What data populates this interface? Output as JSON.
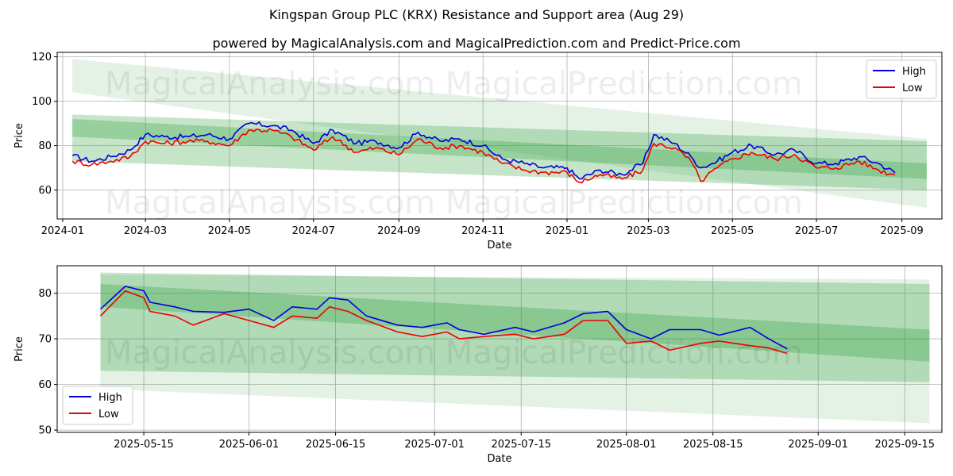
{
  "title": "Kingspan Group PLC (KRX) Resistance and Support area (Aug 29)",
  "subtitle": "powered by MagicalAnalysis.com and MagicalPrediction.com and Predict-Price.com",
  "watermark": "MagicalAnalysis.com    MagicalPrediction.com",
  "colors": {
    "high": "#0000dd",
    "low": "#ee0000",
    "band": "#2e9e3a"
  },
  "chart_data": [
    {
      "type": "line",
      "xlabel": "Date",
      "ylabel": "Price",
      "xlim": [
        "2023-12-28",
        "2025-09-30"
      ],
      "ylim": [
        47,
        122
      ],
      "xticks": [
        "2024-01",
        "2024-03",
        "2024-05",
        "2024-07",
        "2024-09",
        "2024-11",
        "2025-01",
        "2025-03",
        "2025-05",
        "2025-07",
        "2025-09"
      ],
      "yticks": [
        60,
        80,
        100,
        120
      ],
      "legend": "top-right",
      "grid": true,
      "series": [
        {
          "name": "High",
          "color": "#0000dd",
          "points": [
            [
              "2024-01-08",
              75.5
            ],
            [
              "2024-01-22",
              73
            ],
            [
              "2024-02-05",
              75
            ],
            [
              "2024-02-19",
              78
            ],
            [
              "2024-03-01",
              85
            ],
            [
              "2024-03-15",
              84
            ],
            [
              "2024-04-01",
              84
            ],
            [
              "2024-04-15",
              85
            ],
            [
              "2024-05-01",
              83
            ],
            [
              "2024-05-15",
              90
            ],
            [
              "2024-06-01",
              89
            ],
            [
              "2024-06-15",
              87
            ],
            [
              "2024-07-01",
              81
            ],
            [
              "2024-07-15",
              87
            ],
            [
              "2024-08-01",
              81
            ],
            [
              "2024-08-15",
              82
            ],
            [
              "2024-09-01",
              79
            ],
            [
              "2024-09-15",
              86
            ],
            [
              "2024-10-01",
              82
            ],
            [
              "2024-10-15",
              83
            ],
            [
              "2024-11-01",
              80
            ],
            [
              "2024-11-15",
              74
            ],
            [
              "2024-12-01",
              72
            ],
            [
              "2024-12-15",
              70
            ],
            [
              "2025-01-01",
              70
            ],
            [
              "2025-01-10",
              65
            ],
            [
              "2025-01-25",
              69
            ],
            [
              "2025-02-10",
              67
            ],
            [
              "2025-02-25",
              72
            ],
            [
              "2025-03-05",
              85
            ],
            [
              "2025-03-20",
              81
            ],
            [
              "2025-04-01",
              75
            ],
            [
              "2025-04-08",
              70
            ],
            [
              "2025-04-20",
              73
            ],
            [
              "2025-05-01",
              77
            ],
            [
              "2025-05-15",
              80
            ],
            [
              "2025-06-01",
              76
            ],
            [
              "2025-06-15",
              78
            ],
            [
              "2025-07-01",
              72
            ],
            [
              "2025-07-15",
              72
            ],
            [
              "2025-08-01",
              75
            ],
            [
              "2025-08-15",
              72
            ],
            [
              "2025-08-27",
              67.8
            ]
          ]
        },
        {
          "name": "Low",
          "color": "#ee0000",
          "points": [
            [
              "2024-01-08",
              73
            ],
            [
              "2024-01-22",
              71.5
            ],
            [
              "2024-02-05",
              73
            ],
            [
              "2024-02-19",
              75
            ],
            [
              "2024-03-01",
              82
            ],
            [
              "2024-03-15",
              81
            ],
            [
              "2024-04-01",
              82
            ],
            [
              "2024-04-15",
              82
            ],
            [
              "2024-05-01",
              80
            ],
            [
              "2024-05-15",
              87
            ],
            [
              "2024-06-01",
              87
            ],
            [
              "2024-06-15",
              84
            ],
            [
              "2024-07-01",
              78
            ],
            [
              "2024-07-15",
              84
            ],
            [
              "2024-08-01",
              77
            ],
            [
              "2024-08-15",
              79
            ],
            [
              "2024-09-01",
              76
            ],
            [
              "2024-09-15",
              83
            ],
            [
              "2024-10-01",
              79
            ],
            [
              "2024-10-15",
              80
            ],
            [
              "2024-11-01",
              77
            ],
            [
              "2024-11-15",
              72
            ],
            [
              "2024-12-01",
              69
            ],
            [
              "2024-12-15",
              68
            ],
            [
              "2025-01-01",
              68
            ],
            [
              "2025-01-10",
              63.5
            ],
            [
              "2025-01-25",
              67
            ],
            [
              "2025-02-10",
              65
            ],
            [
              "2025-02-25",
              69
            ],
            [
              "2025-03-05",
              81
            ],
            [
              "2025-03-20",
              79
            ],
            [
              "2025-04-01",
              73
            ],
            [
              "2025-04-08",
              64
            ],
            [
              "2025-04-20",
              70
            ],
            [
              "2025-05-01",
              74
            ],
            [
              "2025-05-15",
              77
            ],
            [
              "2025-06-01",
              74
            ],
            [
              "2025-06-15",
              76
            ],
            [
              "2025-07-01",
              70
            ],
            [
              "2025-07-15",
              70
            ],
            [
              "2025-08-01",
              73
            ],
            [
              "2025-08-15",
              69
            ],
            [
              "2025-08-27",
              66.8
            ]
          ]
        }
      ],
      "bands": [
        {
          "x": [
            "2024-01-08",
            "2025-09-19"
          ],
          "upper": [
            119,
            83
          ],
          "lower": [
            104,
            52
          ]
        },
        {
          "x": [
            "2024-01-08",
            "2025-09-19"
          ],
          "upper": [
            94,
            82
          ],
          "lower": [
            73,
            60
          ]
        },
        {
          "x": [
            "2024-01-08",
            "2025-09-19"
          ],
          "upper": [
            92,
            72
          ],
          "lower": [
            84,
            65
          ]
        }
      ]
    },
    {
      "type": "line",
      "xlabel": "Date",
      "ylabel": "Price",
      "xlim": [
        "2025-05-01",
        "2025-09-21"
      ],
      "ylim": [
        49.5,
        86
      ],
      "xticks": [
        "2025-05-15",
        "2025-06-01",
        "2025-06-15",
        "2025-07-01",
        "2025-07-15",
        "2025-08-01",
        "2025-08-15",
        "2025-09-01",
        "2025-09-15"
      ],
      "yticks": [
        50,
        60,
        70,
        80
      ],
      "legend": "bottom-left",
      "grid": true,
      "series": [
        {
          "name": "High",
          "color": "#0000dd",
          "points": [
            [
              "2025-05-08",
              76.5
            ],
            [
              "2025-05-12",
              81.5
            ],
            [
              "2025-05-15",
              80.5
            ],
            [
              "2025-05-16",
              78
            ],
            [
              "2025-05-20",
              77
            ],
            [
              "2025-05-23",
              76
            ],
            [
              "2025-05-28",
              75.8
            ],
            [
              "2025-06-01",
              76.5
            ],
            [
              "2025-06-05",
              74
            ],
            [
              "2025-06-08",
              77
            ],
            [
              "2025-06-12",
              76.5
            ],
            [
              "2025-06-14",
              79
            ],
            [
              "2025-06-17",
              78.5
            ],
            [
              "2025-06-20",
              75
            ],
            [
              "2025-06-25",
              73
            ],
            [
              "2025-06-29",
              72.5
            ],
            [
              "2025-07-03",
              73.5
            ],
            [
              "2025-07-05",
              72
            ],
            [
              "2025-07-09",
              71
            ],
            [
              "2025-07-14",
              72.5
            ],
            [
              "2025-07-17",
              71.5
            ],
            [
              "2025-07-22",
              73.5
            ],
            [
              "2025-07-25",
              75.5
            ],
            [
              "2025-07-29",
              76
            ],
            [
              "2025-08-01",
              72
            ],
            [
              "2025-08-05",
              70
            ],
            [
              "2025-08-08",
              72
            ],
            [
              "2025-08-13",
              72
            ],
            [
              "2025-08-16",
              70.8
            ],
            [
              "2025-08-21",
              72.5
            ],
            [
              "2025-08-24",
              70
            ],
            [
              "2025-08-27",
              67.8
            ]
          ]
        },
        {
          "name": "Low",
          "color": "#ee0000",
          "points": [
            [
              "2025-05-08",
              75
            ],
            [
              "2025-05-12",
              80.5
            ],
            [
              "2025-05-15",
              79
            ],
            [
              "2025-05-16",
              76
            ],
            [
              "2025-05-20",
              75
            ],
            [
              "2025-05-23",
              73
            ],
            [
              "2025-05-28",
              75.5
            ],
            [
              "2025-06-01",
              74
            ],
            [
              "2025-06-05",
              72.5
            ],
            [
              "2025-06-08",
              75
            ],
            [
              "2025-06-12",
              74.5
            ],
            [
              "2025-06-14",
              77
            ],
            [
              "2025-06-17",
              76
            ],
            [
              "2025-06-20",
              74
            ],
            [
              "2025-06-25",
              71.5
            ],
            [
              "2025-06-29",
              70.5
            ],
            [
              "2025-07-03",
              71.5
            ],
            [
              "2025-07-05",
              70
            ],
            [
              "2025-07-09",
              70.5
            ],
            [
              "2025-07-14",
              71
            ],
            [
              "2025-07-17",
              70
            ],
            [
              "2025-07-22",
              71
            ],
            [
              "2025-07-25",
              74
            ],
            [
              "2025-07-29",
              74
            ],
            [
              "2025-08-01",
              69
            ],
            [
              "2025-08-05",
              69.5
            ],
            [
              "2025-08-08",
              67.5
            ],
            [
              "2025-08-13",
              69
            ],
            [
              "2025-08-16",
              69.5
            ],
            [
              "2025-08-21",
              68.5
            ],
            [
              "2025-08-24",
              68
            ],
            [
              "2025-08-27",
              66.8
            ]
          ]
        }
      ],
      "bands": [
        {
          "x": [
            "2025-05-08",
            "2025-09-19"
          ],
          "upper": [
            84,
            83
          ],
          "lower": [
            59,
            51.5
          ]
        },
        {
          "x": [
            "2025-05-08",
            "2025-09-19"
          ],
          "upper": [
            84.5,
            82
          ],
          "lower": [
            63,
            60.5
          ]
        },
        {
          "x": [
            "2025-05-08",
            "2025-09-19"
          ],
          "upper": [
            82,
            72
          ],
          "lower": [
            77,
            65
          ]
        }
      ]
    }
  ]
}
